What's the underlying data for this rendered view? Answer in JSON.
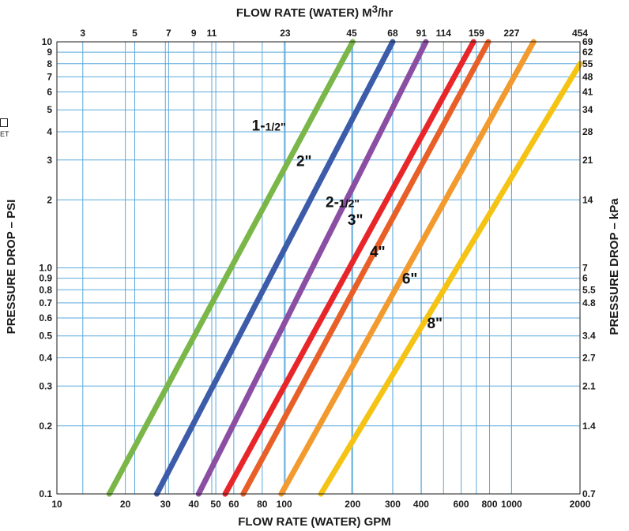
{
  "chart_data": {
    "type": "line",
    "title": "",
    "xlabel": "FLOW RATE (WATER) GPM",
    "x2label_main": "FLOW RATE (WATER) M",
    "x2label_sup": "3",
    "x2label_unit": "/hr",
    "ylabel": "PRESSURE DROP – PSI",
    "y2label": "PRESSURE DROP – kPa",
    "xscale": "log",
    "yscale": "log",
    "xlim": [
      10,
      2000
    ],
    "ylim": [
      0.1,
      10
    ],
    "grid": true,
    "x_ticks": [
      {
        "v": 10,
        "label": "10"
      },
      {
        "v": 20,
        "label": "20"
      },
      {
        "v": 30,
        "label": "30"
      },
      {
        "v": 40,
        "label": "40"
      },
      {
        "v": 50,
        "label": "50"
      },
      {
        "v": 60,
        "label": "60"
      },
      {
        "v": 80,
        "label": "80"
      },
      {
        "v": 100,
        "label": "100"
      },
      {
        "v": 200,
        "label": "200"
      },
      {
        "v": 300,
        "label": "300"
      },
      {
        "v": 400,
        "label": "400"
      },
      {
        "v": 600,
        "label": "600"
      },
      {
        "v": 800,
        "label": "800"
      },
      {
        "v": 1000,
        "label": "1000"
      },
      {
        "v": 2000,
        "label": "2000"
      }
    ],
    "x2_ticks": [
      {
        "v": 13,
        "label": "3"
      },
      {
        "v": 22,
        "label": "5"
      },
      {
        "v": 31,
        "label": "7"
      },
      {
        "v": 40,
        "label": "9"
      },
      {
        "v": 48,
        "label": "11"
      },
      {
        "v": 101,
        "label": "23"
      },
      {
        "v": 198,
        "label": "45"
      },
      {
        "v": 300,
        "label": "68"
      },
      {
        "v": 401,
        "label": "91"
      },
      {
        "v": 502,
        "label": "114"
      },
      {
        "v": 700,
        "label": "159"
      },
      {
        "v": 1000,
        "label": "227"
      },
      {
        "v": 2000,
        "label": "454"
      }
    ],
    "y_ticks": [
      {
        "v": 0.1,
        "label": "0.1"
      },
      {
        "v": 0.2,
        "label": "0.2"
      },
      {
        "v": 0.3,
        "label": "0.3"
      },
      {
        "v": 0.4,
        "label": "0.4"
      },
      {
        "v": 0.5,
        "label": "0.5"
      },
      {
        "v": 0.6,
        "label": "0.6"
      },
      {
        "v": 0.7,
        "label": "0.7"
      },
      {
        "v": 0.8,
        "label": "0.8"
      },
      {
        "v": 0.9,
        "label": "0.9"
      },
      {
        "v": 1.0,
        "label": "1.0"
      },
      {
        "v": 2,
        "label": "2"
      },
      {
        "v": 3,
        "label": "3"
      },
      {
        "v": 4,
        "label": "4"
      },
      {
        "v": 5,
        "label": "5"
      },
      {
        "v": 6,
        "label": "6"
      },
      {
        "v": 7,
        "label": "7"
      },
      {
        "v": 8,
        "label": "8"
      },
      {
        "v": 9,
        "label": "9"
      },
      {
        "v": 10,
        "label": "10"
      }
    ],
    "y2_ticks": [
      {
        "v": 0.1,
        "label": "0.7"
      },
      {
        "v": 0.2,
        "label": "1.4"
      },
      {
        "v": 0.3,
        "label": "2.1"
      },
      {
        "v": 0.4,
        "label": "2.7"
      },
      {
        "v": 0.5,
        "label": "3.4"
      },
      {
        "v": 0.7,
        "label": "4.8"
      },
      {
        "v": 0.8,
        "label": "5.5"
      },
      {
        "v": 0.9,
        "label": "6"
      },
      {
        "v": 1.0,
        "label": "7"
      },
      {
        "v": 2,
        "label": "14"
      },
      {
        "v": 3,
        "label": "21"
      },
      {
        "v": 4,
        "label": "28"
      },
      {
        "v": 5,
        "label": "34"
      },
      {
        "v": 6,
        "label": "41"
      },
      {
        "v": 7,
        "label": "48"
      },
      {
        "v": 8,
        "label": "55"
      },
      {
        "v": 9,
        "label": "62"
      },
      {
        "v": 10,
        "label": "69"
      }
    ],
    "series": [
      {
        "name": "1-1/2\"",
        "label_main": "1-",
        "label_sub": "1/2\"",
        "color": "#7ab648",
        "x": [
          17,
          200
        ],
        "y": [
          0.1,
          10
        ],
        "label_at": {
          "x": 72,
          "y": 4.05
        }
      },
      {
        "name": "2\"",
        "label_main": "2\"",
        "label_sub": "",
        "color": "#3c5ba8",
        "x": [
          27.5,
          300
        ],
        "y": [
          0.1,
          10
        ],
        "label_at": {
          "x": 113,
          "y": 2.82
        }
      },
      {
        "name": "2-1/2\"",
        "label_main": "2-",
        "label_sub": "1/2\"",
        "color": "#8b4ea3",
        "x": [
          42,
          420
        ],
        "y": [
          0.1,
          10
        ],
        "label_at": {
          "x": 152,
          "y": 1.86
        }
      },
      {
        "name": "3\"",
        "label_main": "3\"",
        "label_sub": "",
        "color": "#e8262a",
        "x": [
          55,
          680
        ],
        "y": [
          0.1,
          10
        ],
        "label_at": {
          "x": 190,
          "y": 1.55
        }
      },
      {
        "name": "4\"",
        "label_main": "4\"",
        "label_sub": "",
        "color": "#e86027",
        "x": [
          66,
          790
        ],
        "y": [
          0.1,
          10
        ],
        "label_at": {
          "x": 238,
          "y": 1.12
        }
      },
      {
        "name": "6\"",
        "label_main": "6\"",
        "label_sub": "",
        "color": "#f29a2e",
        "x": [
          97,
          1250
        ],
        "y": [
          0.1,
          10
        ],
        "label_at": {
          "x": 330,
          "y": 0.85
        }
      },
      {
        "name": "8\"",
        "label_main": "8\"",
        "label_sub": "",
        "color": "#f5c314",
        "x": [
          145,
          2000
        ],
        "y": [
          0.1,
          8
        ],
        "label_at": {
          "x": 425,
          "y": 0.54
        }
      }
    ]
  },
  "legend_fragment": {
    "text": "ET"
  }
}
